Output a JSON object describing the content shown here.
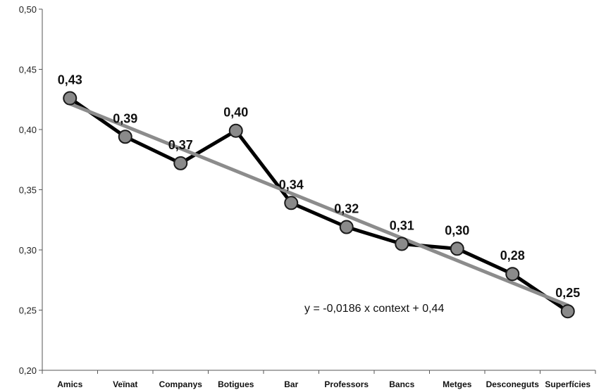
{
  "chart_data": {
    "type": "line",
    "categories": [
      "Amics",
      "Veïnat",
      "Companys",
      "Botigues",
      "Bar",
      "Professors",
      "Bancs",
      "Metges",
      "Desconeguts",
      "Superfícies"
    ],
    "series": [
      {
        "values": [
          0.426,
          0.394,
          0.372,
          0.399,
          0.339,
          0.319,
          0.305,
          0.301,
          0.28,
          0.249
        ],
        "color": "#000000",
        "marker_color": "#8a8a8a"
      }
    ],
    "data_labels": [
      "0,43",
      "0,39",
      "0,37",
      "0,40",
      "0,34",
      "0,32",
      "0,31",
      "0,30",
      "0,28",
      "0,25"
    ],
    "trendline": {
      "slope": -0.0186,
      "intercept": 0.44,
      "color": "#8c8c8c",
      "equation_label": "y = -0,0186 x context + 0,44"
    },
    "y_ticks": [
      "0,20",
      "0,25",
      "0,30",
      "0,35",
      "0,40",
      "0,45",
      "0,50"
    ],
    "ylim": [
      0.2,
      0.5
    ],
    "grid": false,
    "title": "",
    "xlabel": "",
    "ylabel": ""
  }
}
